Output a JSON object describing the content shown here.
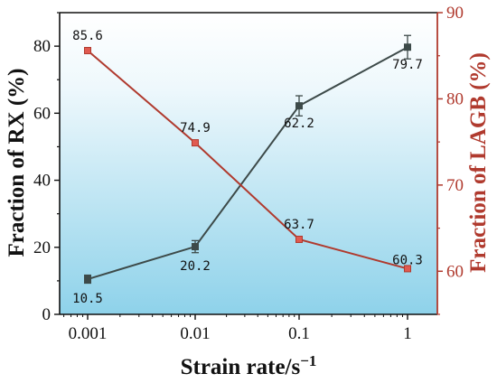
{
  "chart_data": {
    "type": "line",
    "x": [
      0.001,
      0.01,
      0.1,
      1
    ],
    "x_tick_labels": [
      "0.001",
      "0.01",
      "0.1",
      "1"
    ],
    "xlabel": "Strain rate/s",
    "xlabel_superscript": "−1",
    "x_scale": "log",
    "ylabel_left": "Fraction of RX (%)",
    "ylabel_right": "Fraction of LAGB (%)",
    "ylim_left": [
      0,
      90
    ],
    "ylim_right": [
      55,
      90
    ],
    "yticks_left": [
      "0",
      "20",
      "40",
      "60",
      "80"
    ],
    "yticks_right": [
      "60",
      "70",
      "80",
      "90"
    ],
    "series": [
      {
        "axis": "left",
        "color": "#3d4a49",
        "marker": "square",
        "values": [
          10.5,
          20.2,
          62.2,
          79.7
        ],
        "error": [
          1.2,
          1.8,
          3.0,
          3.5
        ],
        "labels": [
          "10.5",
          "20.2",
          "62.2",
          "79.7"
        ]
      },
      {
        "axis": "right",
        "color": "#b03a2e",
        "marker_color": "#e05a50",
        "marker": "square",
        "values": [
          85.6,
          74.9,
          63.7,
          60.3
        ],
        "labels": [
          "85.6",
          "74.9",
          "63.7",
          "60.3"
        ]
      }
    ],
    "background": "gradient white-to-sky-blue",
    "grid": false
  }
}
